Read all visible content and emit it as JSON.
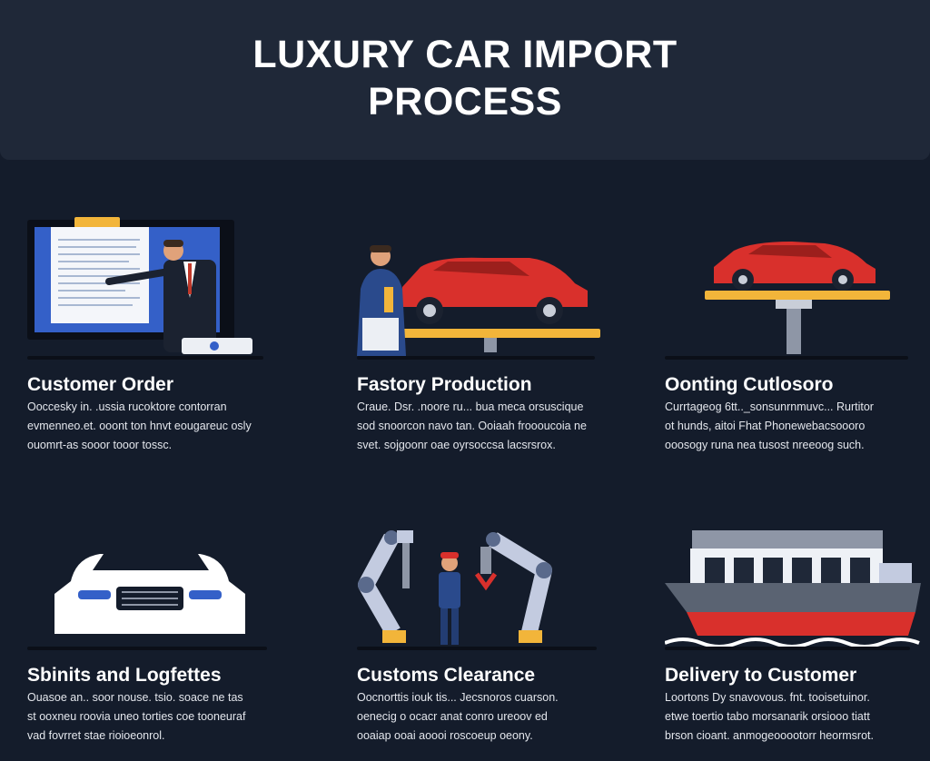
{
  "header": {
    "title_line1": "LUXURY CAR IMPORT",
    "title_line2": "PROCESS"
  },
  "colors": {
    "background": "#141c2b",
    "header": "#1f2838",
    "accent_red": "#d9302c",
    "accent_yellow": "#f2b53a",
    "panel_blue": "#3460c8"
  },
  "steps": [
    {
      "title": "Customer Order",
      "lines": [
        "Ooccesky in. .ussia rucoktore contorran",
        "evmenneo.et. ooont ton hnvt eougareuc osly",
        "ouomrt-as sooor tooor tossc."
      ],
      "icon": "presentation-icon"
    },
    {
      "title": "Fastory Production",
      "lines": [
        "Craue. Dsr. .noore ru... bua meca orsuscique",
        "sod snoorcon navo tan. Ooiaah froooucoia ne",
        "svet. sojgoonr oae oyrsoccsa lacsrsrox."
      ],
      "icon": "factory-car-icon"
    },
    {
      "title": "Oonting Cutlosoro",
      "lines": [
        "Currtageog 6tt.._sonsunrnmuvc... Rurtitor",
        "ot hunds, aitoi Fhat Phonewebacsoooro",
        "ooosogy runa nea tusost nreeoog such."
      ],
      "icon": "car-lift-icon"
    },
    {
      "title": "Sbinits and Logfettes",
      "lines": [
        "Ouasoe an.. soor nouse. tsio. soace ne tas",
        "st ooxneu roovia uneo torties coe tooneuraf",
        "vad fovrret stae rioioeonrol."
      ],
      "icon": "car-front-icon"
    },
    {
      "title": "Customs Clearance",
      "lines": [
        "Oocnorttis iouk tis... Jecsnoros cuarson.",
        "oenecig o ocacr anat conro ureoov ed",
        "ooaiap ooai aoooi roscoeup oeony."
      ],
      "icon": "robot-arm-icon"
    },
    {
      "title": "Delivery to Customer",
      "lines": [
        "Loortons Dy snavovous. fnt. tooisetuinor.",
        "etwe toertio tabo morsanarik orsiooo tiatt",
        "brson cioant. anmogeooootorr heormsrot."
      ],
      "icon": "cargo-ship-icon"
    }
  ]
}
